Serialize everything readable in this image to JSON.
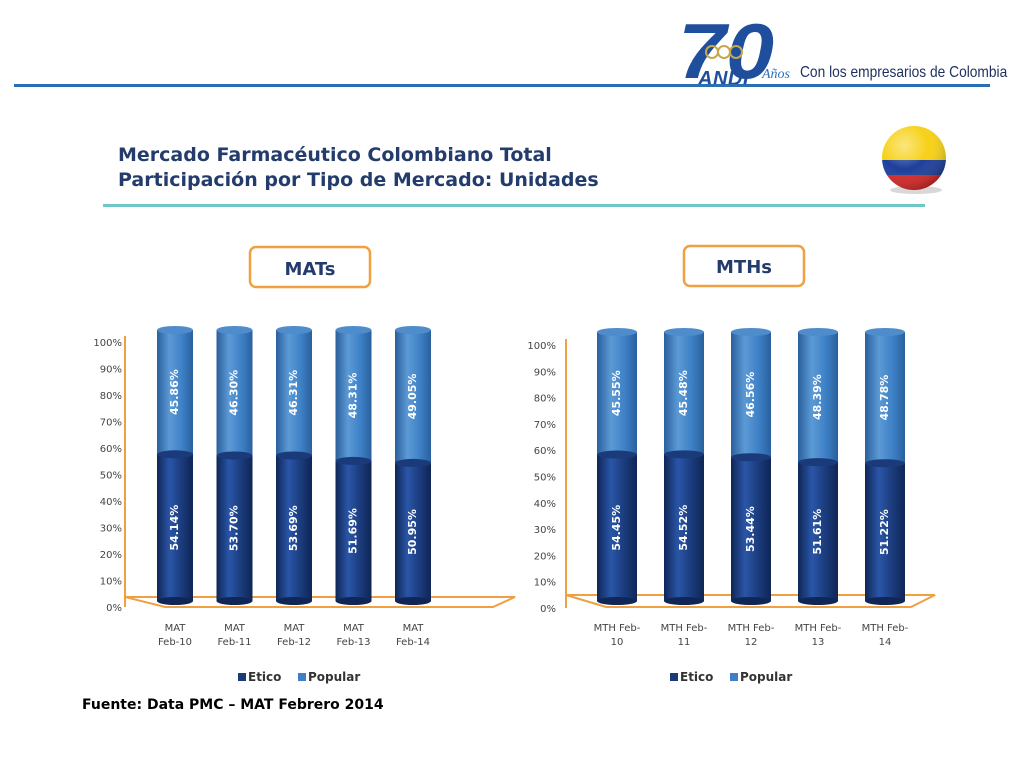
{
  "header": {
    "logo_number": "70",
    "logo_brand": "ANDI",
    "logo_anos": "Años",
    "logo_tagline": "Con los empresarios de Colombia"
  },
  "slide": {
    "title": "Mercado Farmacéutico Colombiano Total",
    "subtitle_prefix": "Participación por Tipo de Mercado: ",
    "subtitle_bold": "Unidades",
    "source": "Fuente: Data PMC – MAT Febrero 2014"
  },
  "colors": {
    "etico": "#1a3a7a",
    "popular": "#3d80c6",
    "accent_orange": "#f0a040",
    "logo_blue": "#1f4f9c"
  },
  "chart_data": [
    {
      "type": "bar",
      "stacked": true,
      "percent": true,
      "title": "MATs",
      "categories": [
        "MAT Feb-10",
        "MAT Feb-11",
        "MAT Feb-12",
        "MAT Feb-13",
        "MAT Feb-14"
      ],
      "category_lines": [
        [
          "MAT",
          "Feb-10"
        ],
        [
          "MAT",
          "Feb-11"
        ],
        [
          "MAT",
          "Feb-12"
        ],
        [
          "MAT",
          "Feb-13"
        ],
        [
          "MAT",
          "Feb-14"
        ]
      ],
      "series": [
        {
          "name": "Etico",
          "values": [
            54.14,
            53.7,
            53.69,
            51.69,
            50.95
          ],
          "labels": [
            "54.14%",
            "53.70%",
            "53.69%",
            "51.69%",
            "50.95%"
          ]
        },
        {
          "name": "Popular",
          "values": [
            45.86,
            46.3,
            46.31,
            48.31,
            49.05
          ],
          "labels": [
            "45.86%",
            "46.30%",
            "46.31%",
            "48.31%",
            "49.05%"
          ]
        }
      ],
      "y_ticks": [
        "0%",
        "10%",
        "20%",
        "30%",
        "40%",
        "50%",
        "60%",
        "70%",
        "80%",
        "90%",
        "100%"
      ],
      "ylim": [
        0,
        100
      ],
      "legend": "bottom"
    },
    {
      "type": "bar",
      "stacked": true,
      "percent": true,
      "title": "MTHs",
      "categories": [
        "MTH Feb-10",
        "MTH Feb-11",
        "MTH Feb-12",
        "MTH Feb-13",
        "MTH Feb-14"
      ],
      "category_lines": [
        [
          "MTH Feb-",
          "10"
        ],
        [
          "MTH Feb-",
          "11"
        ],
        [
          "MTH Feb-",
          "12"
        ],
        [
          "MTH Feb-",
          "13"
        ],
        [
          "MTH Feb-",
          "14"
        ]
      ],
      "series": [
        {
          "name": "Etico",
          "values": [
            54.45,
            54.52,
            53.44,
            51.61,
            51.22
          ],
          "labels": [
            "54.45%",
            "54.52%",
            "53.44%",
            "51.61%",
            "51.22%"
          ]
        },
        {
          "name": "Popular",
          "values": [
            45.55,
            45.48,
            46.56,
            48.39,
            48.78
          ],
          "labels": [
            "45.55%",
            "45.48%",
            "46.56%",
            "48.39%",
            "48.78%"
          ]
        }
      ],
      "y_ticks": [
        "0%",
        "10%",
        "20%",
        "30%",
        "40%",
        "50%",
        "60%",
        "70%",
        "80%",
        "90%",
        "100%"
      ],
      "ylim": [
        0,
        100
      ],
      "legend": "bottom"
    }
  ]
}
